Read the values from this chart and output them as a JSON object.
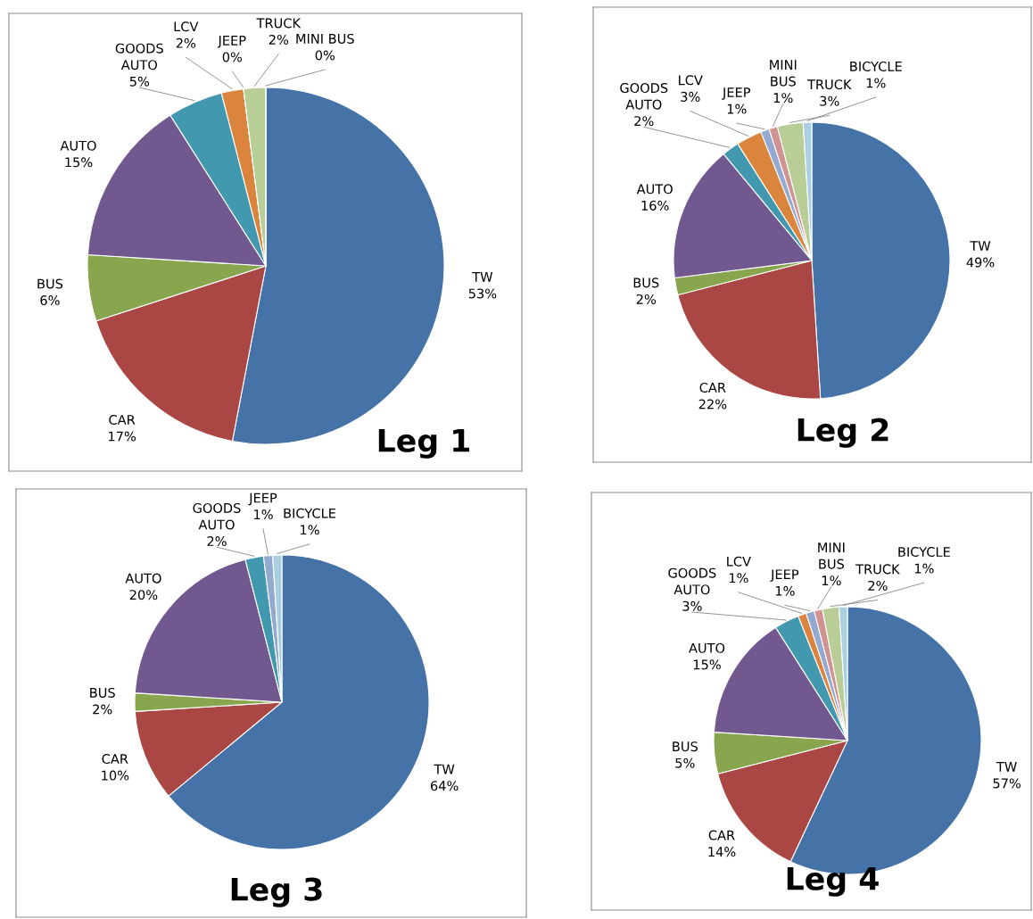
{
  "chart_data": [
    {
      "type": "pie",
      "title": "Leg 1",
      "categories": [
        "TW",
        "CAR",
        "BUS",
        "AUTO",
        "GOODS\nAUTO",
        "LCV",
        "JEEP",
        "TRUCK",
        "MINI BUS"
      ],
      "values": [
        53,
        17,
        6,
        15,
        5,
        2,
        0,
        2,
        0
      ],
      "value_labels": [
        "53%",
        "17%",
        "6%",
        "15%",
        "5%",
        "2%",
        "0%",
        "2%",
        "0%"
      ],
      "colors": [
        "#4572a7",
        "#aa4643",
        "#89a54e",
        "#71588f",
        "#4198af",
        "#db843d",
        "#93a9cf",
        "#b9cd96",
        "#d19392"
      ]
    },
    {
      "type": "pie",
      "title": "Leg 2",
      "categories": [
        "TW",
        "CAR",
        "BUS",
        "AUTO",
        "GOODS\nAUTO",
        "LCV",
        "JEEP",
        "MINI\nBUS",
        "TRUCK",
        "BICYCLE"
      ],
      "values": [
        49,
        22,
        2,
        16,
        2,
        3,
        1,
        1,
        3,
        1
      ],
      "value_labels": [
        "49%",
        "22%",
        "2%",
        "16%",
        "2%",
        "3%",
        "1%",
        "1%",
        "3%",
        "1%"
      ],
      "colors": [
        "#4572a7",
        "#aa4643",
        "#89a54e",
        "#71588f",
        "#4198af",
        "#db843d",
        "#93a9cf",
        "#d19392",
        "#b9cd96",
        "#a9cfe0"
      ]
    },
    {
      "type": "pie",
      "title": "Leg 3",
      "categories": [
        "TW",
        "CAR",
        "BUS",
        "AUTO",
        "GOODS\nAUTO",
        "JEEP",
        "BICYCLE"
      ],
      "values": [
        64,
        10,
        2,
        20,
        2,
        1,
        1
      ],
      "value_labels": [
        "64%",
        "10%",
        "2%",
        "20%",
        "2%",
        "1%",
        "1%"
      ],
      "colors": [
        "#4572a7",
        "#aa4643",
        "#89a54e",
        "#71588f",
        "#4198af",
        "#93a9cf",
        "#a9cfe0"
      ]
    },
    {
      "type": "pie",
      "title": "Leg 4",
      "categories": [
        "TW",
        "CAR",
        "BUS",
        "AUTO",
        "GOODS\nAUTO",
        "LCV",
        "JEEP",
        "MINI\nBUS",
        "TRUCK",
        "BICYCLE"
      ],
      "values": [
        57,
        14,
        5,
        15,
        3,
        1,
        1,
        1,
        2,
        1
      ],
      "value_labels": [
        "57%",
        "14%",
        "5%",
        "15%",
        "3%",
        "1%",
        "1%",
        "1%",
        "2%",
        "1%"
      ],
      "colors": [
        "#4572a7",
        "#aa4643",
        "#89a54e",
        "#71588f",
        "#4198af",
        "#db843d",
        "#93a9cf",
        "#d19392",
        "#b9cd96",
        "#a9cfe0"
      ]
    }
  ]
}
